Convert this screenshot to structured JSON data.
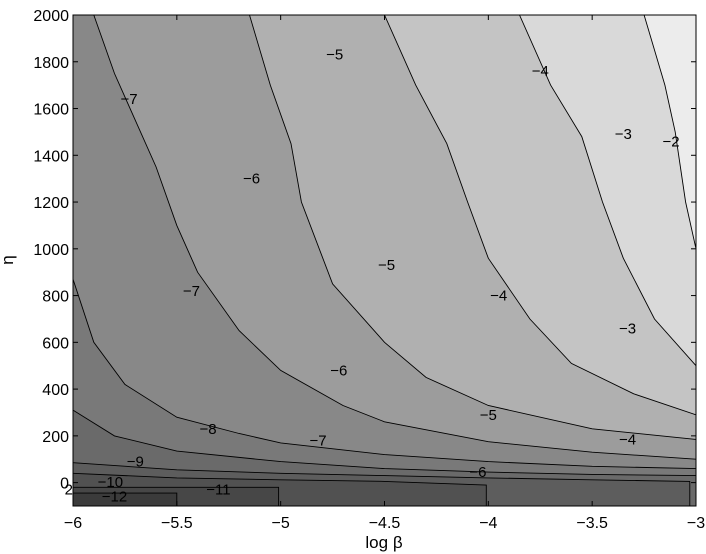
{
  "chart_data": {
    "type": "contour",
    "xlabel": "log β",
    "ylabel": "η",
    "xlim": [
      -6,
      -3
    ],
    "ylim": [
      -100,
      2000
    ],
    "xticks": [
      "−6",
      "−5.5",
      "−5",
      "−4.5",
      "−4",
      "−3.5",
      "−3"
    ],
    "xtick_values": [
      -6,
      -5.5,
      -5,
      -4.5,
      -4,
      -3.5,
      -3
    ],
    "yticks": [
      "0",
      "200",
      "400",
      "600",
      "800",
      "1000",
      "1200",
      "1400",
      "1600",
      "1800",
      "2000"
    ],
    "ytick_values": [
      0,
      200,
      400,
      600,
      800,
      1000,
      1200,
      1400,
      1600,
      1800,
      2000
    ],
    "fill_colors": [
      "#3b3b3b",
      "#474747",
      "#515151",
      "#5d5d5d",
      "#6a6a6a",
      "#797979",
      "#888888",
      "#9c9c9c",
      "#b0b0b0",
      "#c4c4c4",
      "#d9d9d9",
      "#ececec"
    ],
    "contour_levels": [
      -12,
      -11,
      -10,
      -9,
      -8,
      -7,
      -6,
      -5,
      -4,
      -3,
      -2
    ],
    "contour_labels": [
      {
        "text": "−2",
        "x": -3.12,
        "y": 1460
      },
      {
        "text": "−3",
        "x": -3.35,
        "y": 1490
      },
      {
        "text": "−3",
        "x": -3.33,
        "y": 660
      },
      {
        "text": "−4",
        "x": -3.75,
        "y": 1760
      },
      {
        "text": "−4",
        "x": -3.95,
        "y": 800
      },
      {
        "text": "−4",
        "x": -3.33,
        "y": 185
      },
      {
        "text": "−5",
        "x": -4.74,
        "y": 1830
      },
      {
        "text": "−5",
        "x": -4.49,
        "y": 930
      },
      {
        "text": "−5",
        "x": -4.0,
        "y": 290
      },
      {
        "text": "−6",
        "x": -5.14,
        "y": 1300
      },
      {
        "text": "−6",
        "x": -4.72,
        "y": 480
      },
      {
        "text": "−6",
        "x": -4.05,
        "y": 45
      },
      {
        "text": "−7",
        "x": -5.73,
        "y": 1640
      },
      {
        "text": "−7",
        "x": -5.43,
        "y": 820
      },
      {
        "text": "−7",
        "x": -4.82,
        "y": 180
      },
      {
        "text": "−8",
        "x": -5.35,
        "y": 230
      },
      {
        "text": "−9",
        "x": -5.7,
        "y": 90
      },
      {
        "text": "−10",
        "x": -5.82,
        "y": 3
      },
      {
        "text": "−11",
        "x": -5.3,
        "y": -30
      },
      {
        "text": "−12",
        "x": -5.8,
        "y": -60
      },
      {
        "text": "2",
        "x": -6.02,
        "y": -30
      }
    ]
  }
}
